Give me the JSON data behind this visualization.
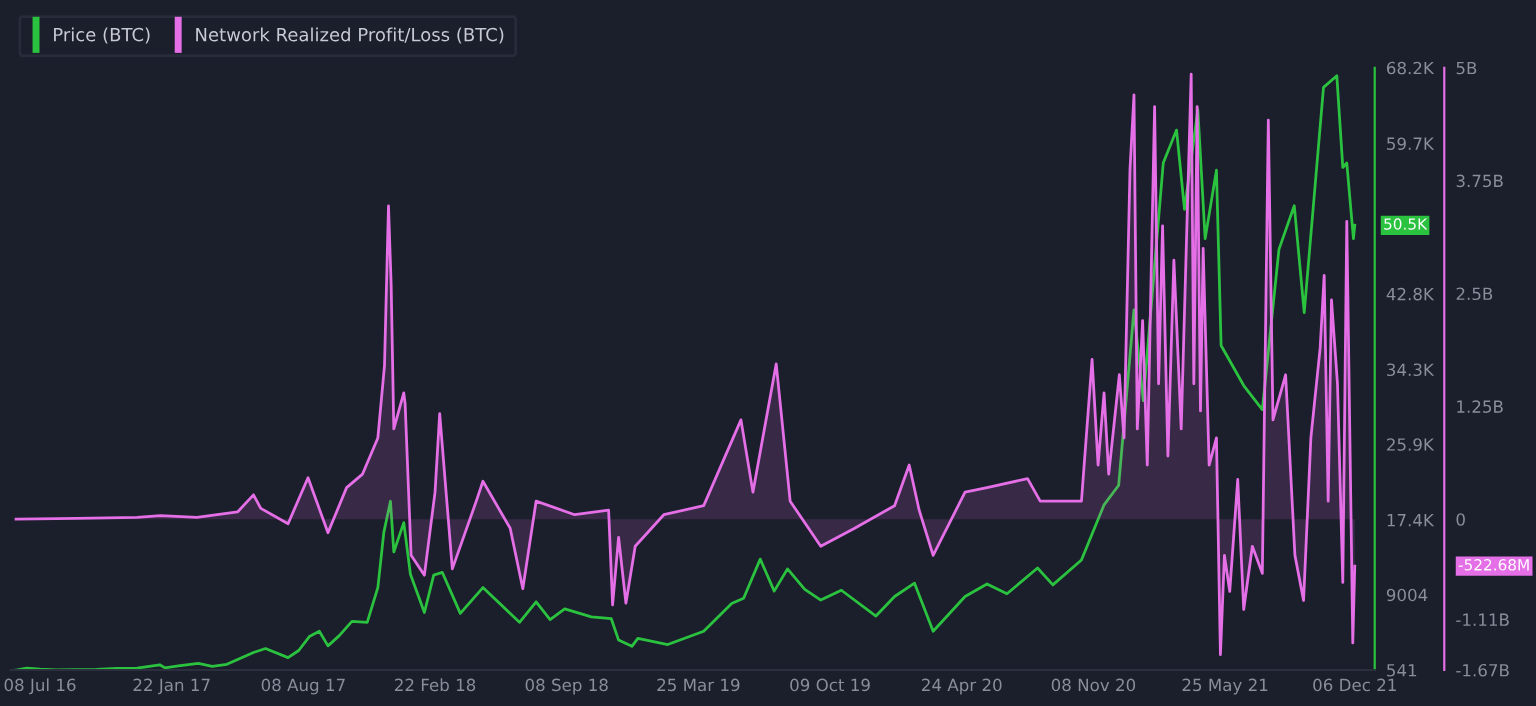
{
  "chart_data": {
    "type": "line",
    "xlim": [
      "2016-05-25",
      "2022-01-05"
    ],
    "xticks": [
      {
        "value": "2016-07-08",
        "label": "08 Jul 16"
      },
      {
        "value": "2017-01-22",
        "label": "22 Jan 17"
      },
      {
        "value": "2017-08-08",
        "label": "08 Aug 17"
      },
      {
        "value": "2018-02-22",
        "label": "22 Feb 18"
      },
      {
        "value": "2018-09-08",
        "label": "08 Sep 18"
      },
      {
        "value": "2019-03-25",
        "label": "25 Mar 19"
      },
      {
        "value": "2019-10-09",
        "label": "09 Oct 19"
      },
      {
        "value": "2020-04-24",
        "label": "24 Apr 20"
      },
      {
        "value": "2020-11-08",
        "label": "08 Nov 20"
      },
      {
        "value": "2021-05-25",
        "label": "25 May 21"
      },
      {
        "value": "2021-12-06",
        "label": "06 Dec 21"
      }
    ],
    "ylim": [
      541,
      68200
    ],
    "yticks": [
      541,
      9004,
      {
        "value": 17400,
        "label": "17.4K"
      },
      {
        "value": 25900,
        "label": "25.9K"
      },
      {
        "value": 34300,
        "label": "34.3K"
      },
      {
        "value": 42800,
        "label": "42.8K"
      },
      {
        "value": 59700,
        "label": "59.7K"
      },
      {
        "value": 68200,
        "label": "68.2K"
      }
    ],
    "y2lim": [
      -1.67,
      5
    ],
    "y2ticks": [
      {
        "value": -1.67,
        "label": "-1.67B"
      },
      {
        "value": -1.11,
        "label": "-1.11B"
      },
      0,
      {
        "value": 1.25,
        "label": "1.25B"
      },
      {
        "value": 2.5,
        "label": "2.5B"
      },
      {
        "value": 3.75,
        "label": "3.75B"
      },
      {
        "value": 5,
        "label": "5B"
      }
    ],
    "legend": "top left",
    "grid": false,
    "annotations": [
      "50.5K",
      "-522.68M"
    ],
    "series": [
      {
        "name": "Price (BTC)",
        "color": "#2bc23f",
        "x": [
          "2016-06-02",
          "2016-06-18",
          "2016-07-08",
          "2016-08-02",
          "2016-09-01",
          "2016-10-01",
          "2016-11-01",
          "2016-12-01",
          "2017-01-04",
          "2017-01-12",
          "2017-02-01",
          "2017-03-03",
          "2017-03-24",
          "2017-04-15",
          "2017-05-25",
          "2017-06-12",
          "2017-07-16",
          "2017-08-01",
          "2017-08-17",
          "2017-09-01",
          "2017-09-14",
          "2017-10-01",
          "2017-10-20",
          "2017-11-12",
          "2017-11-28",
          "2017-12-07",
          "2017-12-17",
          "2017-12-22",
          "2018-01-06",
          "2018-01-16",
          "2018-02-06",
          "2018-02-20",
          "2018-03-05",
          "2018-04-01",
          "2018-05-05",
          "2018-06-29",
          "2018-07-24",
          "2018-08-14",
          "2018-09-05",
          "2018-10-15",
          "2018-11-14",
          "2018-11-25",
          "2018-12-15",
          "2018-12-24",
          "2019-02-07",
          "2019-04-02",
          "2019-05-14",
          "2019-06-01",
          "2019-06-26",
          "2019-07-17",
          "2019-08-06",
          "2019-09-01",
          "2019-09-25",
          "2019-10-26",
          "2019-12-17",
          "2020-01-14",
          "2020-02-13",
          "2020-03-12",
          "2020-04-29",
          "2020-06-01",
          "2020-07-01",
          "2020-08-16",
          "2020-09-08",
          "2020-10-21",
          "2020-11-24",
          "2020-12-16",
          "2021-01-08",
          "2021-01-22",
          "2021-02-21",
          "2021-03-13",
          "2021-03-25",
          "2021-04-14",
          "2021-04-25",
          "2021-05-12",
          "2021-05-19",
          "2021-06-22",
          "2021-07-20",
          "2021-08-14",
          "2021-09-06",
          "2021-09-21",
          "2021-10-20",
          "2021-11-09",
          "2021-11-18",
          "2021-11-24",
          "2021-12-04",
          "2021-12-06"
        ],
        "values": [
          541,
          750,
          640,
          550,
          575,
          615,
          730,
          755,
          1130,
          780,
          990,
          1280,
          940,
          1180,
          2500,
          2950,
          1930,
          2730,
          4300,
          4900,
          3250,
          4400,
          6000,
          5900,
          9800,
          16000,
          19500,
          13800,
          17100,
          11300,
          7000,
          11200,
          11500,
          6900,
          9800,
          5900,
          8200,
          6200,
          7400,
          6500,
          6300,
          3900,
          3200,
          4100,
          3400,
          4900,
          8000,
          8600,
          13000,
          9400,
          11900,
          9600,
          8400,
          9500,
          6600,
          8800,
          10300,
          4900,
          8800,
          10200,
          9100,
          12000,
          10100,
          12900,
          19100,
          21300,
          41000,
          30800,
          57500,
          61200,
          52300,
          63500,
          49000,
          56700,
          37000,
          32500,
          29800,
          47800,
          52700,
          40700,
          66000,
          67300,
          57000,
          57500,
          49000,
          50500
        ]
      },
      {
        "name": "Network Realized Profit/Loss (BTC)",
        "color": "#e46fe6",
        "type": "area",
        "axis": "y2",
        "x": [
          "2016-06-02",
          "2016-09-01",
          "2016-12-01",
          "2017-01-05",
          "2017-03-01",
          "2017-05-01",
          "2017-05-25",
          "2017-06-05",
          "2017-07-16",
          "2017-08-15",
          "2017-09-14",
          "2017-10-12",
          "2017-11-05",
          "2017-11-28",
          "2017-12-08",
          "2017-12-14",
          "2017-12-18",
          "2017-12-22",
          "2018-01-06",
          "2018-01-08",
          "2018-01-17",
          "2018-02-06",
          "2018-02-22",
          "2018-03-01",
          "2018-03-20",
          "2018-04-25",
          "2018-05-05",
          "2018-06-15",
          "2018-07-04",
          "2018-07-24",
          "2018-09-20",
          "2018-11-10",
          "2018-11-16",
          "2018-11-25",
          "2018-12-06",
          "2018-12-20",
          "2019-02-01",
          "2019-04-02",
          "2019-05-28",
          "2019-06-15",
          "2019-07-20",
          "2019-08-10",
          "2019-09-25",
          "2019-11-15",
          "2020-01-14",
          "2020-02-05",
          "2020-02-20",
          "2020-03-12",
          "2020-04-29",
          "2020-06-01",
          "2020-08-01",
          "2020-08-20",
          "2020-10-21",
          "2020-11-06",
          "2020-11-15",
          "2020-11-24",
          "2020-12-01",
          "2020-12-17",
          "2020-12-24",
          "2021-01-02",
          "2021-01-08",
          "2021-01-13",
          "2021-01-21",
          "2021-01-28",
          "2021-02-08",
          "2021-02-14",
          "2021-02-20",
          "2021-02-28",
          "2021-03-09",
          "2021-03-20",
          "2021-04-04",
          "2021-04-08",
          "2021-04-13",
          "2021-04-18",
          "2021-04-22",
          "2021-05-01",
          "2021-05-12",
          "2021-05-18",
          "2021-05-24",
          "2021-06-01",
          "2021-06-13",
          "2021-06-22",
          "2021-07-05",
          "2021-07-20",
          "2021-07-29",
          "2021-08-05",
          "2021-08-24",
          "2021-09-07",
          "2021-09-20",
          "2021-10-01",
          "2021-10-15",
          "2021-10-21",
          "2021-10-27",
          "2021-11-01",
          "2021-11-10",
          "2021-11-18",
          "2021-11-24",
          "2021-12-01",
          "2021-12-03",
          "2021-12-06"
        ],
        "values": [
          0,
          0.01,
          0.02,
          0.04,
          0.02,
          0.08,
          0.27,
          0.12,
          -0.05,
          0.46,
          -0.15,
          0.35,
          0.5,
          0.9,
          1.7,
          3.47,
          2.6,
          1.0,
          1.4,
          1.28,
          -0.4,
          -0.62,
          0.3,
          1.17,
          -0.55,
          0.2,
          0.42,
          -0.1,
          -0.77,
          0.2,
          0.05,
          0.1,
          -0.95,
          -0.2,
          -0.93,
          -0.3,
          0.05,
          0.15,
          1.1,
          0.3,
          1.72,
          0.2,
          -0.3,
          -0.1,
          0.15,
          0.6,
          0.1,
          -0.4,
          0.3,
          0.35,
          0.45,
          0.2,
          0.2,
          1.77,
          0.6,
          1.4,
          0.5,
          1.6,
          0.9,
          3.87,
          4.7,
          1.0,
          2.2,
          0.6,
          4.57,
          1.5,
          3.25,
          0.7,
          2.87,
          1.0,
          4.93,
          1.5,
          4.57,
          1.2,
          3.0,
          0.6,
          0.9,
          -1.5,
          -0.4,
          -0.8,
          0.44,
          -1.0,
          -0.3,
          -0.6,
          4.42,
          1.1,
          1.6,
          -0.4,
          -0.9,
          0.9,
          1.9,
          2.7,
          0.2,
          2.43,
          1.5,
          -0.7,
          3.3,
          -0.3,
          -1.37,
          -0.52
        ]
      }
    ]
  }
}
